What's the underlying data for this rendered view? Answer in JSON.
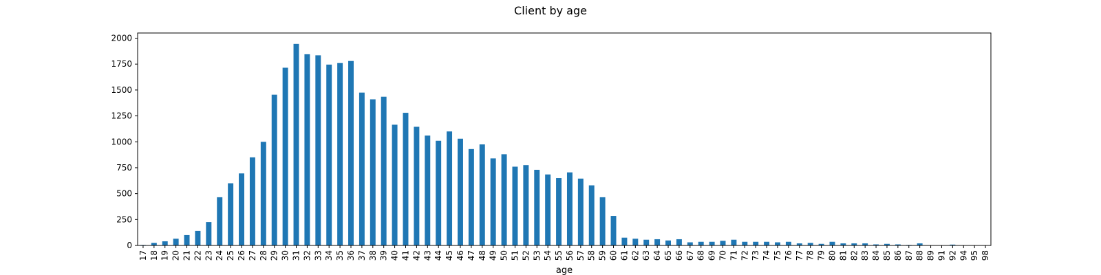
{
  "chart_data": {
    "type": "bar",
    "title": "Client by age",
    "xlabel": "age",
    "ylabel": "",
    "ylim": [
      0,
      2050
    ],
    "yticks": [
      0,
      250,
      500,
      750,
      1000,
      1250,
      1500,
      1750,
      2000
    ],
    "grid": false,
    "legend": "none",
    "bar_color": "#1f77b4",
    "categories": [
      "17",
      "18",
      "19",
      "20",
      "21",
      "22",
      "23",
      "24",
      "25",
      "26",
      "27",
      "28",
      "29",
      "30",
      "31",
      "32",
      "33",
      "34",
      "35",
      "36",
      "37",
      "38",
      "39",
      "40",
      "41",
      "42",
      "43",
      "44",
      "45",
      "46",
      "47",
      "48",
      "49",
      "50",
      "51",
      "52",
      "53",
      "54",
      "55",
      "56",
      "57",
      "58",
      "59",
      "60",
      "61",
      "62",
      "63",
      "64",
      "65",
      "66",
      "67",
      "68",
      "69",
      "70",
      "71",
      "72",
      "73",
      "74",
      "75",
      "76",
      "77",
      "78",
      "79",
      "80",
      "81",
      "82",
      "83",
      "84",
      "85",
      "86",
      "87",
      "88",
      "89",
      "91",
      "92",
      "94",
      "95",
      "98"
    ],
    "values": [
      5,
      25,
      40,
      65,
      100,
      140,
      225,
      465,
      600,
      695,
      850,
      1000,
      1455,
      1715,
      1945,
      1845,
      1835,
      1745,
      1760,
      1780,
      1475,
      1410,
      1435,
      1165,
      1280,
      1145,
      1060,
      1010,
      1100,
      1030,
      930,
      975,
      840,
      880,
      760,
      775,
      730,
      685,
      650,
      705,
      645,
      580,
      465,
      285,
      75,
      65,
      55,
      60,
      48,
      60,
      30,
      35,
      35,
      45,
      55,
      35,
      35,
      35,
      30,
      35,
      20,
      25,
      15,
      35,
      20,
      20,
      20,
      10,
      15,
      10,
      5,
      20,
      2,
      2,
      8,
      2,
      2,
      2
    ]
  }
}
